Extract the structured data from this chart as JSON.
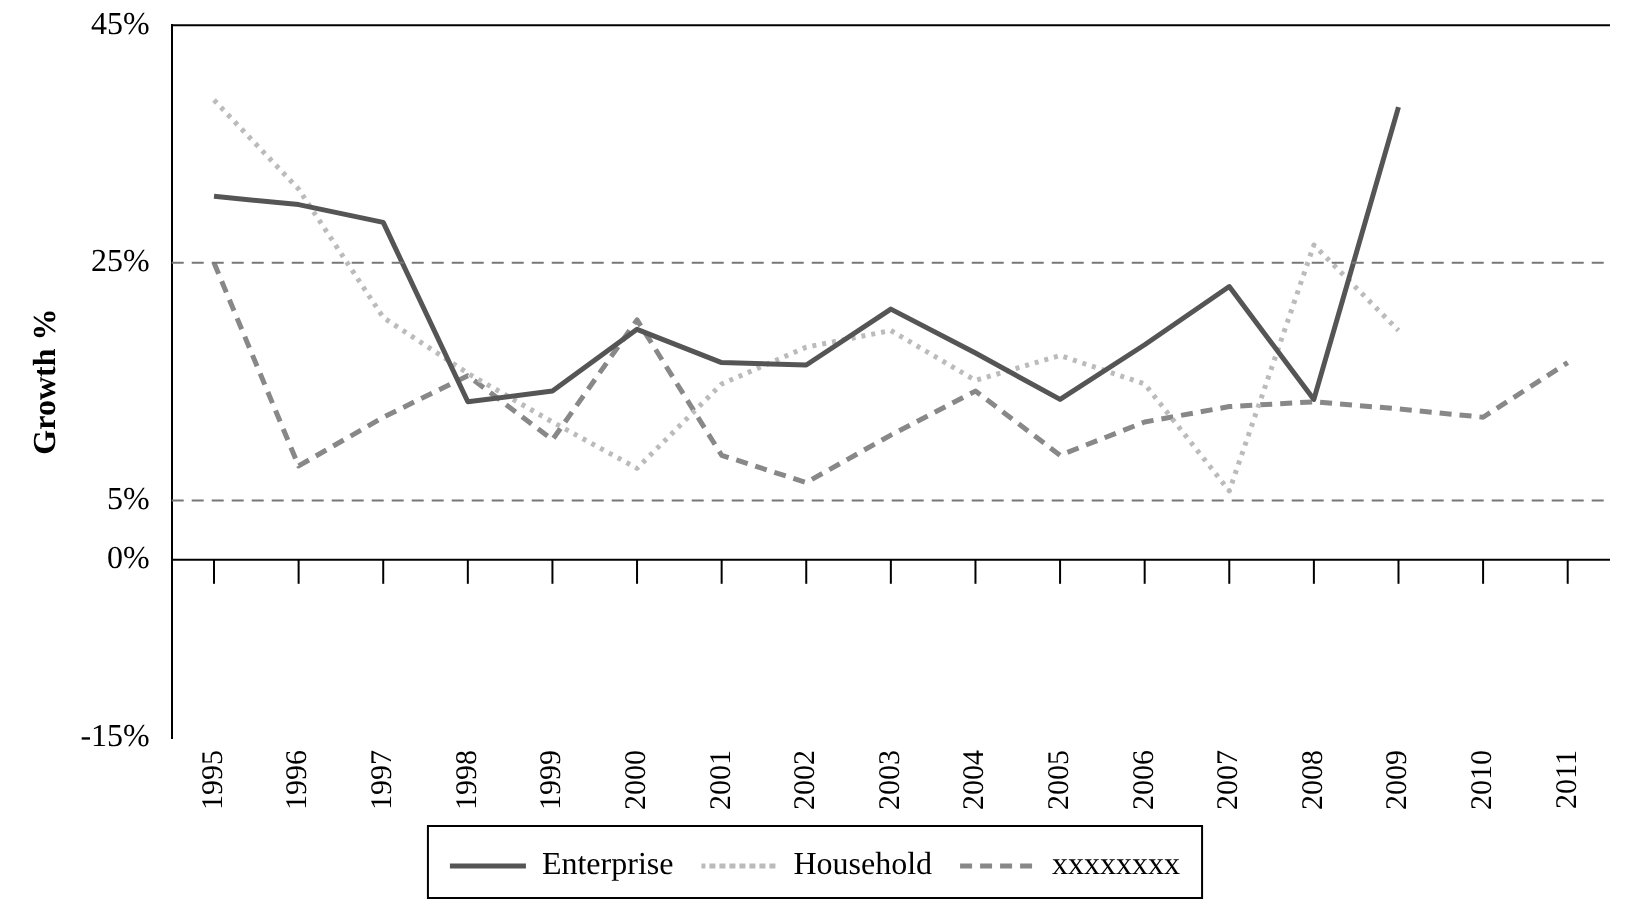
{
  "chart_data": {
    "type": "line",
    "ylabel": "Growth %",
    "categories": [
      "1995",
      "1996",
      "1997",
      "1998",
      "1999",
      "2000",
      "2001",
      "2002",
      "2003",
      "2004",
      "2005",
      "2006",
      "2007",
      "2008",
      "2009",
      "2010",
      "2011"
    ],
    "series": [
      {
        "name": "Enterprise",
        "color": "#555555",
        "line_style": "solid",
        "values": [
          30.6,
          29.9,
          28.4,
          13.3,
          14.2,
          19.4,
          16.6,
          16.4,
          21.1,
          17.4,
          13.5,
          18.1,
          23,
          13.5,
          38.1,
          null,
          null
        ]
      },
      {
        "name": "Household",
        "color": "#bbbbbb",
        "line_style": "dotted",
        "values": [
          38.7,
          31.2,
          20.4,
          15.7,
          11.6,
          7.7,
          14.8,
          17.9,
          19.3,
          15.1,
          17.2,
          14.8,
          5.8,
          26.5,
          19.3,
          null,
          null
        ]
      },
      {
        "name": "xxxxxxxx",
        "color": "#888888",
        "line_style": "dashed",
        "values": [
          25,
          7.9,
          12,
          15.5,
          10.1,
          20.2,
          8.8,
          6.5,
          10.5,
          14.2,
          8.8,
          11.6,
          12.9,
          13.3,
          12.7,
          12,
          16.6
        ]
      }
    ],
    "ylim": [
      -15,
      45
    ],
    "yticks": [
      {
        "value": -15,
        "label": "-15%"
      },
      {
        "value": 0,
        "label": "0%"
      },
      {
        "value": 5,
        "label": "5%"
      },
      {
        "value": 25,
        "label": "25%"
      },
      {
        "value": 45,
        "label": "45%"
      }
    ],
    "ref_lines": [
      {
        "axis": "y",
        "value": 25,
        "color": "#777777",
        "line_style": "dashed"
      },
      {
        "axis": "y",
        "value": 5,
        "color": "#777777",
        "line_style": "dashed"
      }
    ],
    "grid": false,
    "legend": "bottom",
    "marker": "none"
  }
}
